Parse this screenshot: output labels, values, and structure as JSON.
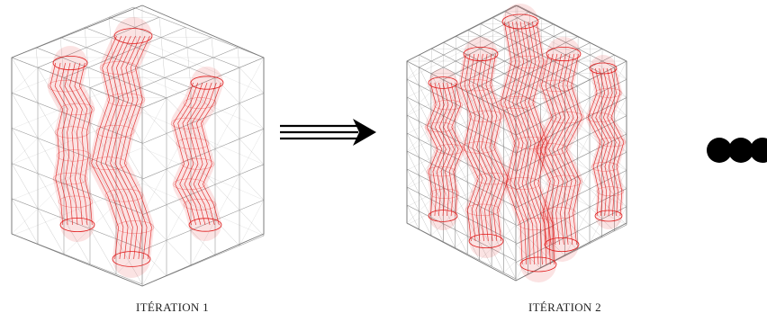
{
  "figure": {
    "iterations": [
      {
        "label": "ITÉRATION 1",
        "mesh_color": "#9a9a9a",
        "fiber_color": "#e01818",
        "fiber_count": 3,
        "grid_divisions": 5
      },
      {
        "label": "ITÉRATION 2",
        "mesh_color": "#8a8a8a",
        "fiber_color": "#e01818",
        "fiber_count": 5,
        "grid_divisions": 9
      }
    ],
    "arrow_icon": "double-arrow-right",
    "ellipsis_icon": "ellipsis-dots",
    "ellipsis_color": "#000000",
    "arrow_color": "#000000",
    "background": "#ffffff"
  }
}
